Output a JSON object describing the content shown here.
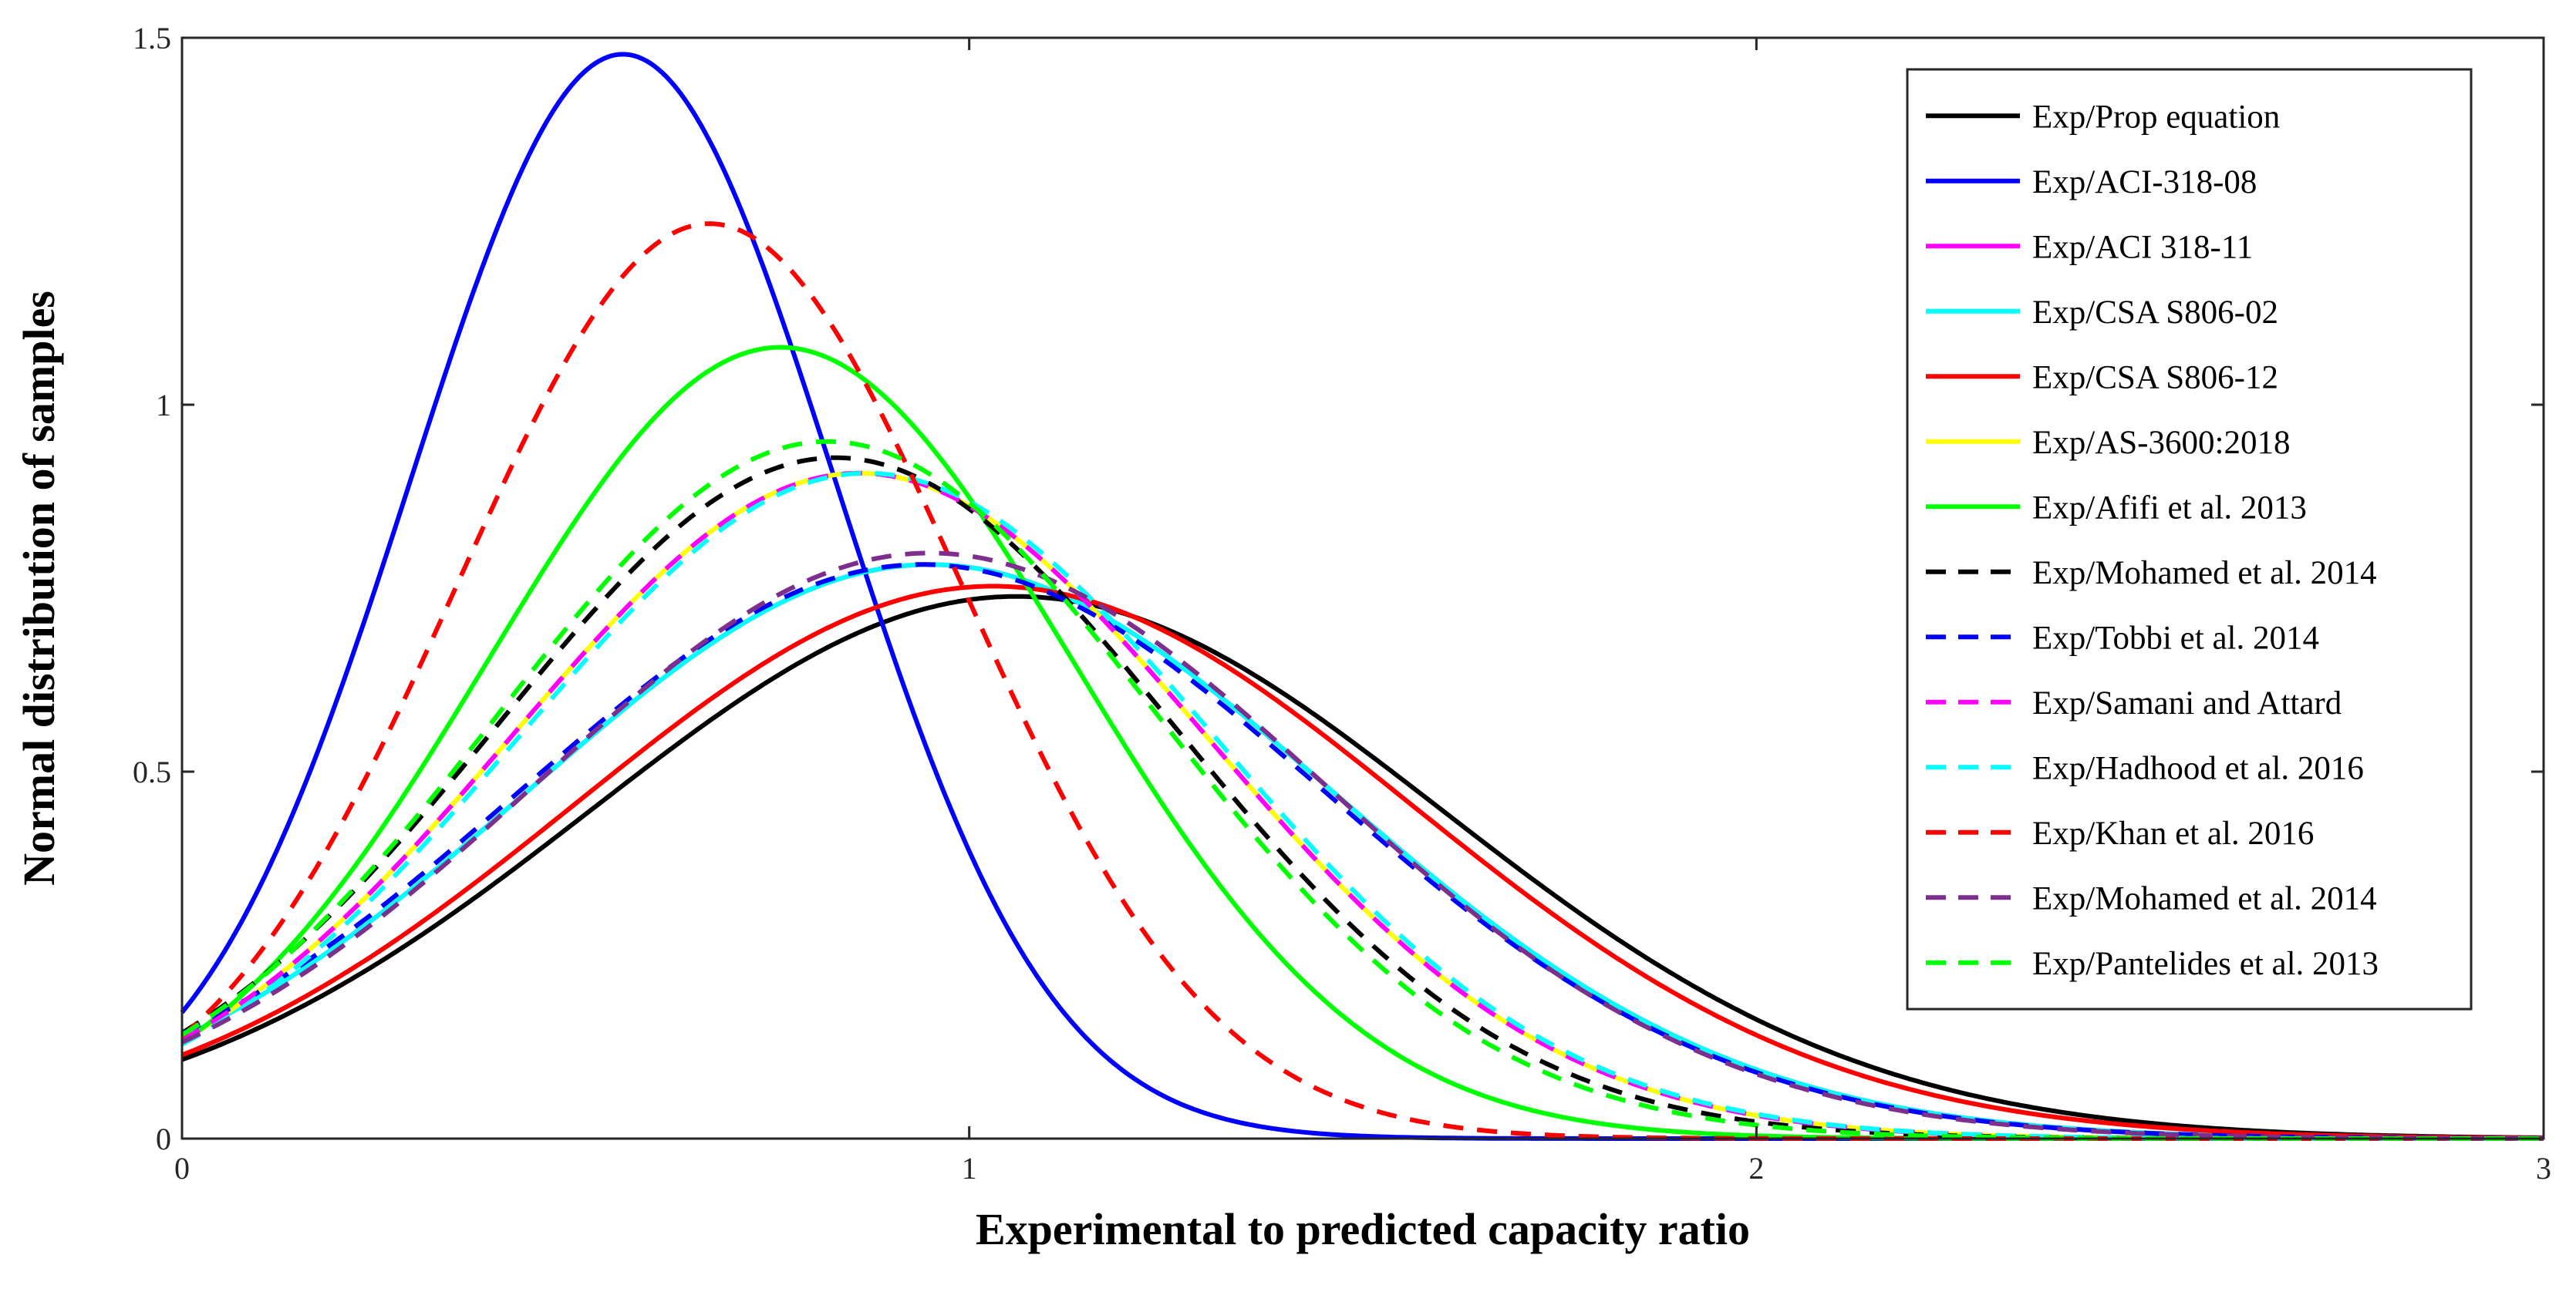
{
  "chart_data": {
    "type": "line",
    "title": "",
    "xlabel": "Experimental to predicted capacity ratio",
    "ylabel": "Normal distribution of samples",
    "xlim": [
      0,
      3
    ],
    "ylim": [
      0,
      1.5
    ],
    "x_ticks": [
      0,
      1,
      2,
      3
    ],
    "x_tick_labels": [
      "0",
      "1",
      "2",
      "3"
    ],
    "y_ticks": [
      0,
      0.5,
      1,
      1.5
    ],
    "y_tick_labels": [
      "0",
      "0.5",
      "1",
      "1.5"
    ],
    "grid": false,
    "legend_position": "top-right",
    "curve_model": "normal pdf; mean and standard deviation estimated from each curve's peak",
    "series": [
      {
        "name": "Exp/Prop equation",
        "color": "#000000",
        "dash": "solid",
        "mean": 1.06,
        "std": 0.54
      },
      {
        "name": "Exp/ACI-318-08",
        "color": "#0000ff",
        "dash": "solid",
        "mean": 0.56,
        "std": 0.27
      },
      {
        "name": "Exp/ACI 318-11",
        "color": "#ff00ff",
        "dash": "solid",
        "mean": 0.95,
        "std": 0.51
      },
      {
        "name": "Exp/CSA S806-02",
        "color": "#00ffff",
        "dash": "solid",
        "mean": 0.95,
        "std": 0.51
      },
      {
        "name": "Exp/CSA S806-12",
        "color": "#ff0000",
        "dash": "solid",
        "mean": 1.03,
        "std": 0.53
      },
      {
        "name": "Exp/AS-3600:2018",
        "color": "#ffff00",
        "dash": "solid",
        "mean": 0.86,
        "std": 0.44
      },
      {
        "name": "Exp/Afifi et al. 2013",
        "color": "#00ff00",
        "dash": "solid",
        "mean": 0.76,
        "std": 0.37
      },
      {
        "name": "Exp/Mohamed et al. 2014",
        "color": "#000000",
        "dash": "dashed",
        "mean": 0.83,
        "std": 0.43
      },
      {
        "name": "Exp/Tobbi et al. 2014",
        "color": "#0000ff",
        "dash": "dashed",
        "mean": 0.94,
        "std": 0.51
      },
      {
        "name": "Exp/Samani and Attard",
        "color": "#ff00ff",
        "dash": "dashed",
        "mean": 0.86,
        "std": 0.44
      },
      {
        "name": "Exp/Hadhood et al. 2016",
        "color": "#00ffff",
        "dash": "dashed",
        "mean": 0.87,
        "std": 0.44
      },
      {
        "name": "Exp/Khan et al. 2016",
        "color": "#ff0000",
        "dash": "dashed",
        "mean": 0.67,
        "std": 0.32
      },
      {
        "name": "Exp/Mohamed et al. 2014",
        "color": "#7e2f8e",
        "dash": "dashed",
        "mean": 0.95,
        "std": 0.5
      },
      {
        "name": "Exp/Pantelides et al. 2013",
        "color": "#00ff00",
        "dash": "dashed",
        "mean": 0.82,
        "std": 0.42
      }
    ]
  }
}
